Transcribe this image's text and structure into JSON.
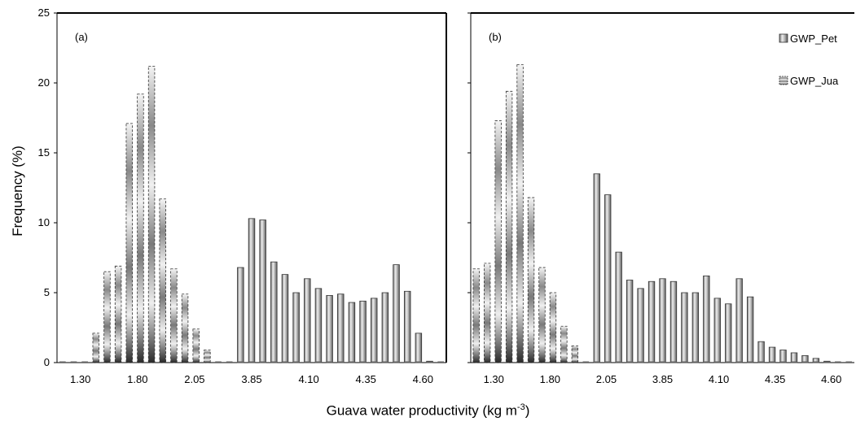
{
  "y_axis_title": "Frequency (%)",
  "x_axis_title": {
    "text": "Guava water productivity (kg m",
    "sup": "-3",
    "close": ")"
  },
  "legend": [
    {
      "label": "GWP_Pet",
      "color": "#9a9a9a"
    },
    {
      "label": "GWP_Jua",
      "color": "#c8c8c8"
    }
  ],
  "chart_data": [
    {
      "type": "bar",
      "panel_label": "(a)",
      "ylabel": "Frequency (%)",
      "xlabel": "Guava water productivity (kg m-3)",
      "ylim": [
        0,
        25
      ],
      "yticks": [
        0,
        5,
        10,
        15,
        20,
        25
      ],
      "xtick_labels": [
        "1.30",
        "1.80",
        "2.05",
        "3.85",
        "4.10",
        "4.35",
        "4.60"
      ],
      "series": [
        {
          "name": "GWP_Pet",
          "style": "grey-cylinder",
          "values": [
            0,
            0,
            0,
            0,
            0,
            0,
            0,
            0,
            0,
            0,
            0,
            0,
            0,
            0,
            0,
            0,
            6.8,
            10.3,
            10.2,
            7.2,
            6.3,
            5.0,
            6.0,
            5.3,
            4.8,
            4.9,
            4.3,
            4.4,
            4.6,
            5.0,
            7.0,
            5.1,
            2.1,
            0.1,
            0
          ]
        },
        {
          "name": "GWP_Jua",
          "style": "dashed-gradient",
          "values": [
            0,
            0,
            0,
            2.1,
            6.5,
            6.9,
            17.1,
            19.2,
            21.2,
            11.7,
            6.7,
            4.9,
            2.4,
            0.9,
            0.1,
            0,
            0,
            0,
            0,
            0,
            0,
            0,
            0,
            0,
            0,
            0,
            0,
            0,
            0,
            0,
            0,
            0,
            0,
            0,
            0
          ]
        }
      ]
    },
    {
      "type": "bar",
      "panel_label": "(b)",
      "ylabel": "Frequency (%)",
      "xlabel": "Guava water productivity (kg m-3)",
      "ylim": [
        0,
        25
      ],
      "yticks": [
        0,
        5,
        10,
        15,
        20,
        25
      ],
      "xtick_labels": [
        "1.30",
        "1.80",
        "2.05",
        "3.85",
        "4.10",
        "4.35",
        "4.60"
      ],
      "series": [
        {
          "name": "GWP_Pet",
          "style": "grey-cylinder",
          "values": [
            0,
            0,
            0,
            0,
            0,
            0,
            0,
            0,
            0,
            0,
            0,
            13.5,
            12.0,
            7.9,
            5.9,
            5.3,
            5.8,
            6.0,
            5.8,
            5.0,
            5.0,
            6.2,
            4.6,
            4.2,
            6.0,
            4.7,
            1.5,
            1.1,
            0.9,
            0.7,
            0.5,
            0.3,
            0.1,
            0,
            0
          ]
        },
        {
          "name": "GWP_Jua",
          "style": "dashed-gradient",
          "values": [
            6.7,
            7.1,
            17.3,
            19.4,
            21.3,
            11.8,
            6.8,
            5.0,
            2.6,
            1.2,
            0,
            0,
            0,
            0,
            0,
            0,
            0,
            0,
            0,
            0,
            0,
            0,
            0,
            0,
            0,
            0,
            0,
            0,
            0,
            0,
            0,
            0,
            0,
            0,
            0
          ]
        }
      ]
    }
  ]
}
